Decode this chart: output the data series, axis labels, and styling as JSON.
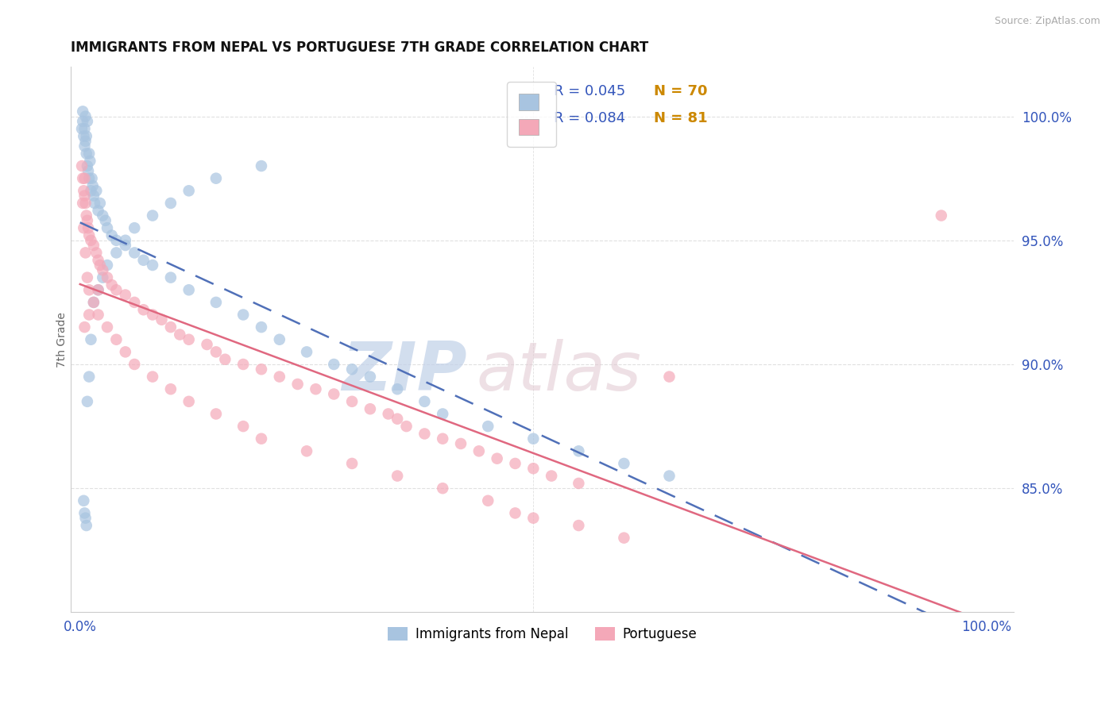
{
  "title": "IMMIGRANTS FROM NEPAL VS PORTUGUESE 7TH GRADE CORRELATION CHART",
  "source_text": "Source: ZipAtlas.com",
  "ylabel": "7th Grade",
  "watermark_zip": "ZIP",
  "watermark_atlas": "atlas",
  "r1": "0.045",
  "n1": "70",
  "r2": "0.084",
  "n2": "81",
  "label1": "Immigrants from Nepal",
  "label2": "Portuguese",
  "blue_scatter": "#a8c4e0",
  "pink_scatter": "#f4a8b8",
  "blue_line": "#5070b8",
  "pink_line": "#e06880",
  "grid_color": "#e0e0e0",
  "title_color": "#111111",
  "axis_tick_color": "#3355bb",
  "source_color": "#aaaaaa",
  "watermark_zip_color": "#c0d0e8",
  "watermark_atlas_color": "#e0c8d0",
  "legend_r_color": "#3355bb",
  "legend_n_color": "#cc8800",
  "xlim_min": -1,
  "xlim_max": 103,
  "ylim_min": 80,
  "ylim_max": 102,
  "right_yticks": [
    85,
    90,
    95,
    100
  ],
  "right_ytick_labels": [
    "85.0%",
    "90.0%",
    "95.0%",
    "100.0%"
  ],
  "nepal_x": [
    0.2,
    0.3,
    0.3,
    0.4,
    0.5,
    0.5,
    0.6,
    0.6,
    0.7,
    0.7,
    0.8,
    0.8,
    0.9,
    1.0,
    1.0,
    1.1,
    1.2,
    1.3,
    1.4,
    1.5,
    1.6,
    1.8,
    2.0,
    2.2,
    2.5,
    2.8,
    3.0,
    3.5,
    4.0,
    5.0,
    6.0,
    7.0,
    8.0,
    10.0,
    12.0,
    15.0,
    18.0,
    20.0,
    22.0,
    25.0,
    28.0,
    30.0,
    32.0,
    35.0,
    38.0,
    40.0,
    45.0,
    50.0,
    55.0,
    60.0,
    65.0,
    0.4,
    0.5,
    0.6,
    0.7,
    0.8,
    1.0,
    1.2,
    1.5,
    2.0,
    2.5,
    3.0,
    4.0,
    5.0,
    6.0,
    8.0,
    10.0,
    12.0,
    15.0,
    20.0
  ],
  "nepal_y": [
    99.5,
    99.8,
    100.2,
    99.2,
    98.8,
    99.5,
    99.0,
    100.0,
    98.5,
    99.2,
    98.0,
    99.8,
    97.8,
    97.5,
    98.5,
    98.2,
    97.0,
    97.5,
    97.2,
    96.8,
    96.5,
    97.0,
    96.2,
    96.5,
    96.0,
    95.8,
    95.5,
    95.2,
    95.0,
    94.8,
    94.5,
    94.2,
    94.0,
    93.5,
    93.0,
    92.5,
    92.0,
    91.5,
    91.0,
    90.5,
    90.0,
    89.8,
    89.5,
    89.0,
    88.5,
    88.0,
    87.5,
    87.0,
    86.5,
    86.0,
    85.5,
    84.5,
    84.0,
    83.8,
    83.5,
    88.5,
    89.5,
    91.0,
    92.5,
    93.0,
    93.5,
    94.0,
    94.5,
    95.0,
    95.5,
    96.0,
    96.5,
    97.0,
    97.5,
    98.0
  ],
  "port_x": [
    0.2,
    0.3,
    0.4,
    0.5,
    0.5,
    0.6,
    0.7,
    0.8,
    0.9,
    1.0,
    1.2,
    1.5,
    1.8,
    2.0,
    2.2,
    2.5,
    3.0,
    3.5,
    4.0,
    5.0,
    6.0,
    7.0,
    8.0,
    9.0,
    10.0,
    11.0,
    12.0,
    14.0,
    15.0,
    16.0,
    18.0,
    20.0,
    22.0,
    24.0,
    26.0,
    28.0,
    30.0,
    32.0,
    34.0,
    35.0,
    36.0,
    38.0,
    40.0,
    42.0,
    44.0,
    46.0,
    48.0,
    50.0,
    52.0,
    55.0,
    0.3,
    0.4,
    0.6,
    0.8,
    1.0,
    1.5,
    2.0,
    3.0,
    4.0,
    5.0,
    6.0,
    8.0,
    10.0,
    12.0,
    15.0,
    18.0,
    20.0,
    25.0,
    30.0,
    35.0,
    40.0,
    45.0,
    48.0,
    50.0,
    55.0,
    60.0,
    65.0,
    0.5,
    1.0,
    2.0,
    95.0
  ],
  "port_y": [
    98.0,
    97.5,
    97.0,
    96.8,
    97.5,
    96.5,
    96.0,
    95.8,
    95.5,
    95.2,
    95.0,
    94.8,
    94.5,
    94.2,
    94.0,
    93.8,
    93.5,
    93.2,
    93.0,
    92.8,
    92.5,
    92.2,
    92.0,
    91.8,
    91.5,
    91.2,
    91.0,
    90.8,
    90.5,
    90.2,
    90.0,
    89.8,
    89.5,
    89.2,
    89.0,
    88.8,
    88.5,
    88.2,
    88.0,
    87.8,
    87.5,
    87.2,
    87.0,
    86.8,
    86.5,
    86.2,
    86.0,
    85.8,
    85.5,
    85.2,
    96.5,
    95.5,
    94.5,
    93.5,
    93.0,
    92.5,
    92.0,
    91.5,
    91.0,
    90.5,
    90.0,
    89.5,
    89.0,
    88.5,
    88.0,
    87.5,
    87.0,
    86.5,
    86.0,
    85.5,
    85.0,
    84.5,
    84.0,
    83.8,
    83.5,
    83.0,
    89.5,
    91.5,
    92.0,
    93.0,
    96.0
  ]
}
